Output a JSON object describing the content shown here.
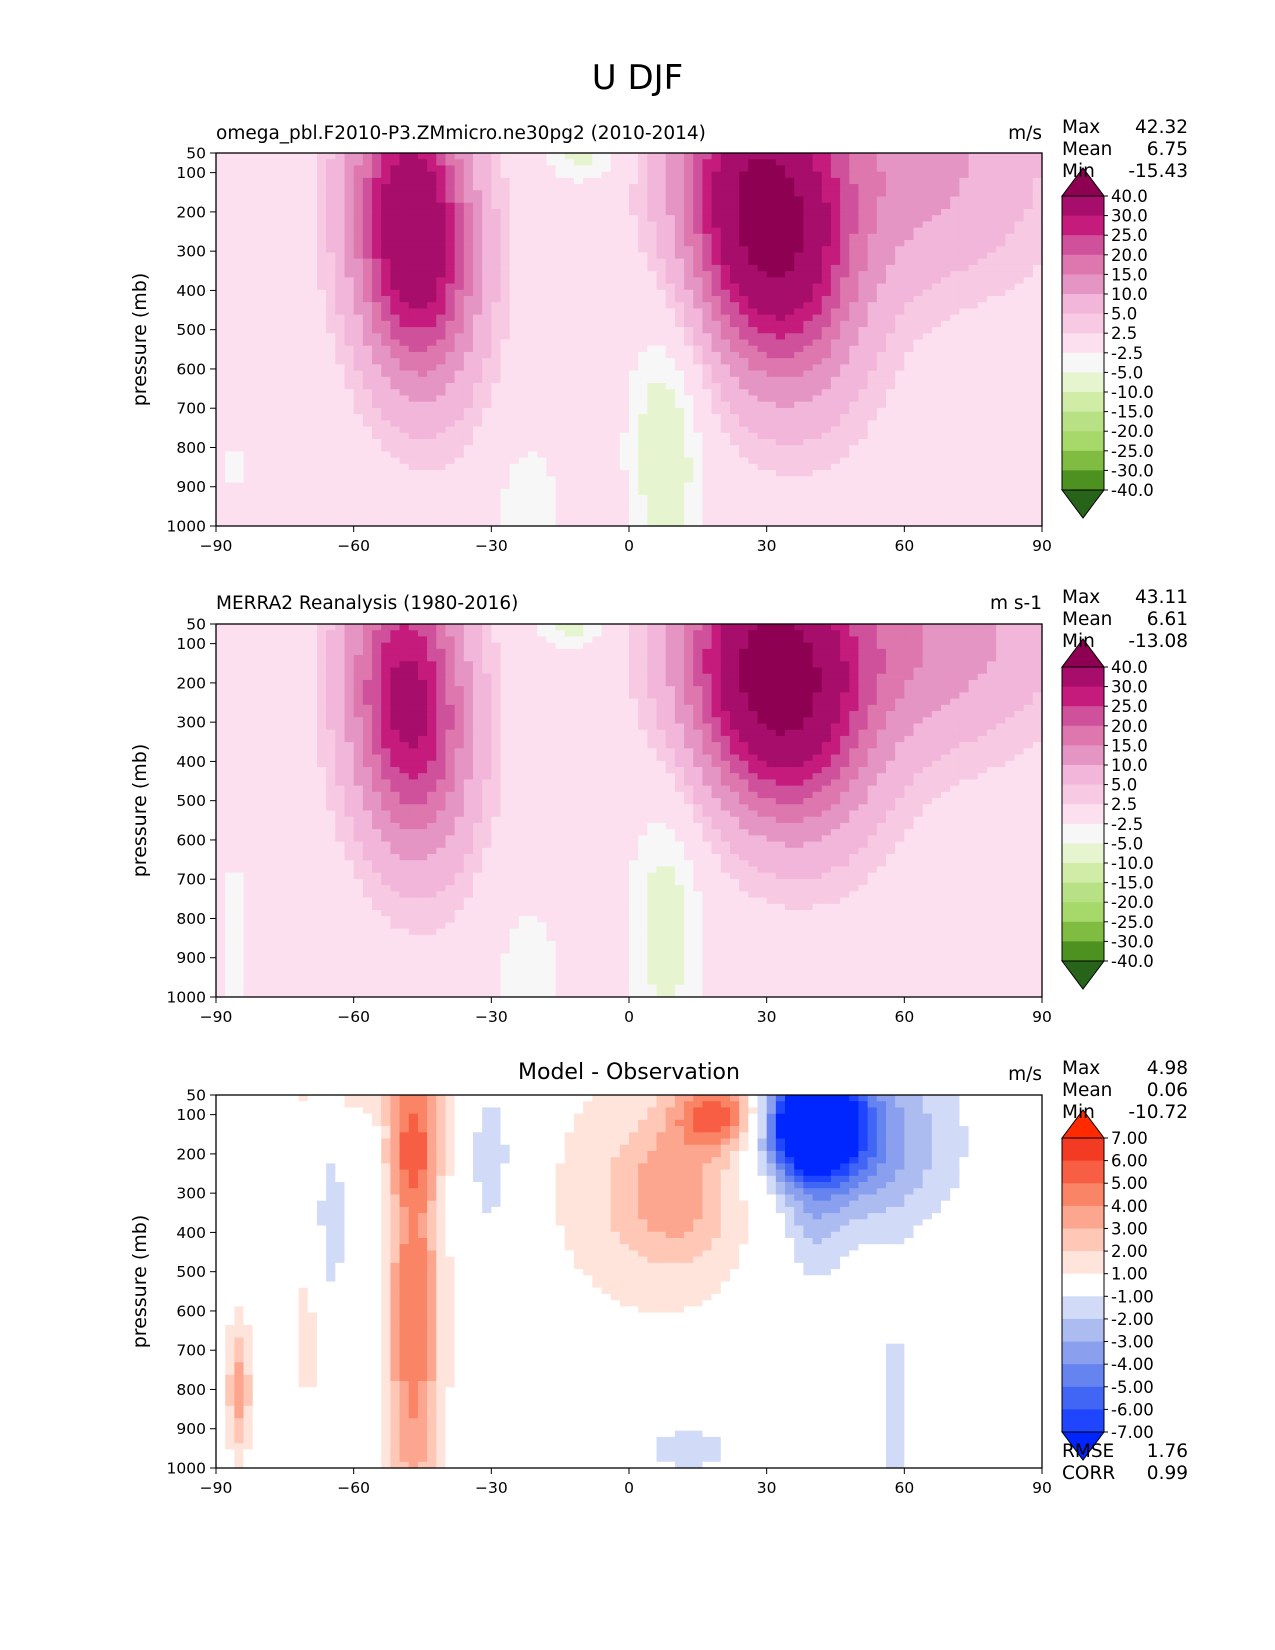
{
  "suptitle": "U DJF",
  "colors": {
    "test_levels": [
      "#276419",
      "#4d9221",
      "#7fbc41",
      "#a6d96a",
      "#b8e186",
      "#d0eca7",
      "#e6f5d0",
      "#f7f7f7",
      "#fde0ef",
      "#f7c9e2",
      "#f1b6da",
      "#e595c4",
      "#de77ae",
      "#cf519b",
      "#c51b7d",
      "#a70d6a",
      "#8e0152"
    ],
    "diff_levels": [
      "#0026ff",
      "#1f45ff",
      "#4166f5",
      "#6684f0",
      "#8aa0ef",
      "#adbcf0",
      "#d1dbf8",
      "#ffffff",
      "#ffe4dc",
      "#fec7b6",
      "#fca68f",
      "#fa8466",
      "#f75e43",
      "#f33a22",
      "#ff2a00"
    ]
  },
  "chart_data": [
    {
      "id": "test",
      "type": "heatmap",
      "title": "omega_pbl.F2010-P3.ZMmicro.ne30pg2 (2010-2014)",
      "units": "m/s",
      "stats": [
        {
          "label": "Max",
          "value": "42.32"
        },
        {
          "label": "Mean",
          "value": "6.75"
        },
        {
          "label": "Min",
          "value": "-15.43"
        }
      ],
      "xlabel": "",
      "ylabel": "pressure (mb)",
      "xlim": [
        -90,
        90
      ],
      "ylim": [
        1000,
        50
      ],
      "xticks": [
        "−90",
        "−60",
        "−30",
        "0",
        "30",
        "60",
        "90"
      ],
      "xtick_values": [
        -90,
        -60,
        -30,
        0,
        30,
        60,
        90
      ],
      "yticks": [
        "50",
        "100",
        "200",
        "300",
        "400",
        "500",
        "600",
        "700",
        "800",
        "900",
        "1000"
      ],
      "ytick_values": [
        50,
        100,
        200,
        300,
        400,
        500,
        600,
        700,
        800,
        900,
        1000
      ],
      "colorbar": {
        "labels": [
          "40.0",
          "30.0",
          "25.0",
          "20.0",
          "15.0",
          "10.0",
          "5.0",
          "2.5",
          "-2.5",
          "-5.0",
          "-10.0",
          "-15.0",
          "-20.0",
          "-25.0",
          "-30.0",
          "-40.0"
        ],
        "extend": "both"
      },
      "features": [
        {
          "lat": -47,
          "p": 250,
          "value": 40,
          "wlat": 9,
          "wp": 260,
          "alat": 3,
          "ap": 700
        },
        {
          "lat": 30,
          "p": 230,
          "value": 43,
          "wlat": 12,
          "wp": 270,
          "alat": 5,
          "ap": 500
        },
        {
          "lat": 60,
          "p": 80,
          "value": 12,
          "wlat": 22,
          "wp": 220,
          "alat": 0,
          "ap": 0
        },
        {
          "lat": -10,
          "p": 60,
          "value": -6,
          "wlat": 6,
          "wp": 50,
          "alat": 0,
          "ap": 0
        },
        {
          "lat": 8,
          "p": 800,
          "value": -8,
          "wlat": 6,
          "wp": 250,
          "alat": 0,
          "ap": 0
        },
        {
          "lat": -22,
          "p": 950,
          "value": -5,
          "wlat": 5,
          "wp": 120,
          "alat": 0,
          "ap": 0
        },
        {
          "lat": -86,
          "p": 850,
          "value": -3,
          "wlat": 2,
          "wp": 120,
          "alat": 0,
          "ap": 0
        }
      ]
    },
    {
      "id": "ref",
      "type": "heatmap",
      "title": "MERRA2 Reanalysis (1980-2016)",
      "units": "m s-1",
      "stats": [
        {
          "label": "Max",
          "value": "43.11"
        },
        {
          "label": "Mean",
          "value": "6.61"
        },
        {
          "label": "Min",
          "value": "-13.08"
        }
      ],
      "xlabel": "",
      "ylabel": "pressure (mb)",
      "xlim": [
        -90,
        90
      ],
      "ylim": [
        1000,
        50
      ],
      "xticks": [
        "−90",
        "−60",
        "−30",
        "0",
        "30",
        "60",
        "90"
      ],
      "xtick_values": [
        -90,
        -60,
        -30,
        0,
        30,
        60,
        90
      ],
      "yticks": [
        "50",
        "100",
        "200",
        "300",
        "400",
        "500",
        "600",
        "700",
        "800",
        "900",
        "1000"
      ],
      "ytick_values": [
        50,
        100,
        200,
        300,
        400,
        500,
        600,
        700,
        800,
        900,
        1000
      ],
      "colorbar": {
        "labels": [
          "40.0",
          "30.0",
          "25.0",
          "20.0",
          "15.0",
          "10.0",
          "5.0",
          "2.5",
          "-2.5",
          "-5.0",
          "-10.0",
          "-15.0",
          "-20.0",
          "-25.0",
          "-30.0",
          "-40.0"
        ],
        "extend": "both"
      },
      "features": [
        {
          "lat": -48,
          "p": 250,
          "value": 33,
          "wlat": 9,
          "wp": 260,
          "alat": 3,
          "ap": 700
        },
        {
          "lat": 32,
          "p": 200,
          "value": 43,
          "wlat": 13,
          "wp": 240,
          "alat": 5,
          "ap": 500
        },
        {
          "lat": 62,
          "p": 80,
          "value": 14,
          "wlat": 22,
          "wp": 200,
          "alat": 0,
          "ap": 0
        },
        {
          "lat": -12,
          "p": 55,
          "value": -6,
          "wlat": 6,
          "wp": 45,
          "alat": 0,
          "ap": 0
        },
        {
          "lat": 8,
          "p": 820,
          "value": -7,
          "wlat": 6,
          "wp": 240,
          "alat": 0,
          "ap": 0
        },
        {
          "lat": -22,
          "p": 930,
          "value": -4,
          "wlat": 6,
          "wp": 150,
          "alat": 0,
          "ap": 0
        },
        {
          "lat": -86,
          "p": 850,
          "value": -5,
          "wlat": 2,
          "wp": 150,
          "alat": 0,
          "ap": 0
        }
      ]
    },
    {
      "id": "diff",
      "type": "heatmap",
      "title": "Model - Observation",
      "units": "m/s",
      "stats": [
        {
          "label": "Max",
          "value": "4.98"
        },
        {
          "label": "Mean",
          "value": "0.06"
        },
        {
          "label": "Min",
          "value": "-10.72"
        }
      ],
      "stats_bottom": [
        {
          "label": "RMSE",
          "value": "1.76"
        },
        {
          "label": "CORR",
          "value": "0.99"
        }
      ],
      "xlabel": "",
      "ylabel": "pressure (mb)",
      "xlim": [
        -90,
        90
      ],
      "ylim": [
        1000,
        50
      ],
      "xticks": [
        "−90",
        "−60",
        "−30",
        "0",
        "30",
        "60",
        "90"
      ],
      "xtick_values": [
        -90,
        -60,
        -30,
        0,
        30,
        60,
        90
      ],
      "yticks": [
        "50",
        "100",
        "200",
        "300",
        "400",
        "500",
        "600",
        "700",
        "800",
        "900",
        "1000"
      ],
      "ytick_values": [
        50,
        100,
        200,
        300,
        400,
        500,
        600,
        700,
        800,
        900,
        1000
      ],
      "colorbar": {
        "labels": [
          "7.00",
          "6.00",
          "5.00",
          "4.00",
          "3.00",
          "2.00",
          "1.00",
          "-1.00",
          "-2.00",
          "-3.00",
          "-4.00",
          "-5.00",
          "-6.00",
          "-7.00"
        ],
        "extend": "both"
      },
      "features": [
        {
          "lat": 40,
          "p": 120,
          "value": -11,
          "wlat": 7,
          "wp": 90,
          "alat": 0,
          "ap": 0
        },
        {
          "lat": 50,
          "p": 170,
          "value": -4,
          "wlat": 14,
          "wp": 160,
          "alat": 0,
          "ap": 0
        },
        {
          "lat": 40,
          "p": 380,
          "value": -1.5,
          "wlat": 5,
          "wp": 150,
          "alat": 0,
          "ap": 0
        },
        {
          "lat": -47,
          "p": 350,
          "value": 3,
          "wlat": 4,
          "wp": 450,
          "alat": 0,
          "ap": 0
        },
        {
          "lat": -47,
          "p": 180,
          "value": 2.5,
          "wlat": 4,
          "wp": 80,
          "alat": 0,
          "ap": 0
        },
        {
          "lat": -47,
          "p": 800,
          "value": 2.5,
          "wlat": 5,
          "wp": 350,
          "alat": 0,
          "ap": 0
        },
        {
          "lat": 20,
          "p": 100,
          "value": 5,
          "wlat": 7,
          "wp": 60,
          "alat": 0,
          "ap": 0
        },
        {
          "lat": 10,
          "p": 300,
          "value": 2.5,
          "wlat": 9,
          "wp": 120,
          "alat": 0,
          "ap": 0
        },
        {
          "lat": 5,
          "p": 300,
          "value": 1.5,
          "wlat": 22,
          "wp": 300,
          "alat": 0,
          "ap": 0
        },
        {
          "lat": -30,
          "p": 200,
          "value": -2.5,
          "wlat": 3,
          "wp": 140,
          "alat": 0,
          "ap": 0
        },
        {
          "lat": -65,
          "p": 380,
          "value": -1.5,
          "wlat": 3,
          "wp": 180,
          "alat": 0,
          "ap": 0
        },
        {
          "lat": 13,
          "p": 950,
          "value": -1.5,
          "wlat": 10,
          "wp": 60,
          "alat": 0,
          "ap": 0
        },
        {
          "lat": 58,
          "p": 850,
          "value": -1.5,
          "wlat": 3,
          "wp": 200,
          "alat": 0,
          "ap": 0
        },
        {
          "lat": -85,
          "p": 800,
          "value": 3.5,
          "wlat": 2,
          "wp": 130,
          "alat": 0,
          "ap": 0
        },
        {
          "lat": -70,
          "p": 650,
          "value": 1.5,
          "wlat": 2,
          "wp": 200,
          "alat": 0,
          "ap": 0
        },
        {
          "lat": -60,
          "p": 60,
          "value": 1.2,
          "wlat": 20,
          "wp": 40,
          "alat": 0,
          "ap": 0
        }
      ]
    }
  ]
}
